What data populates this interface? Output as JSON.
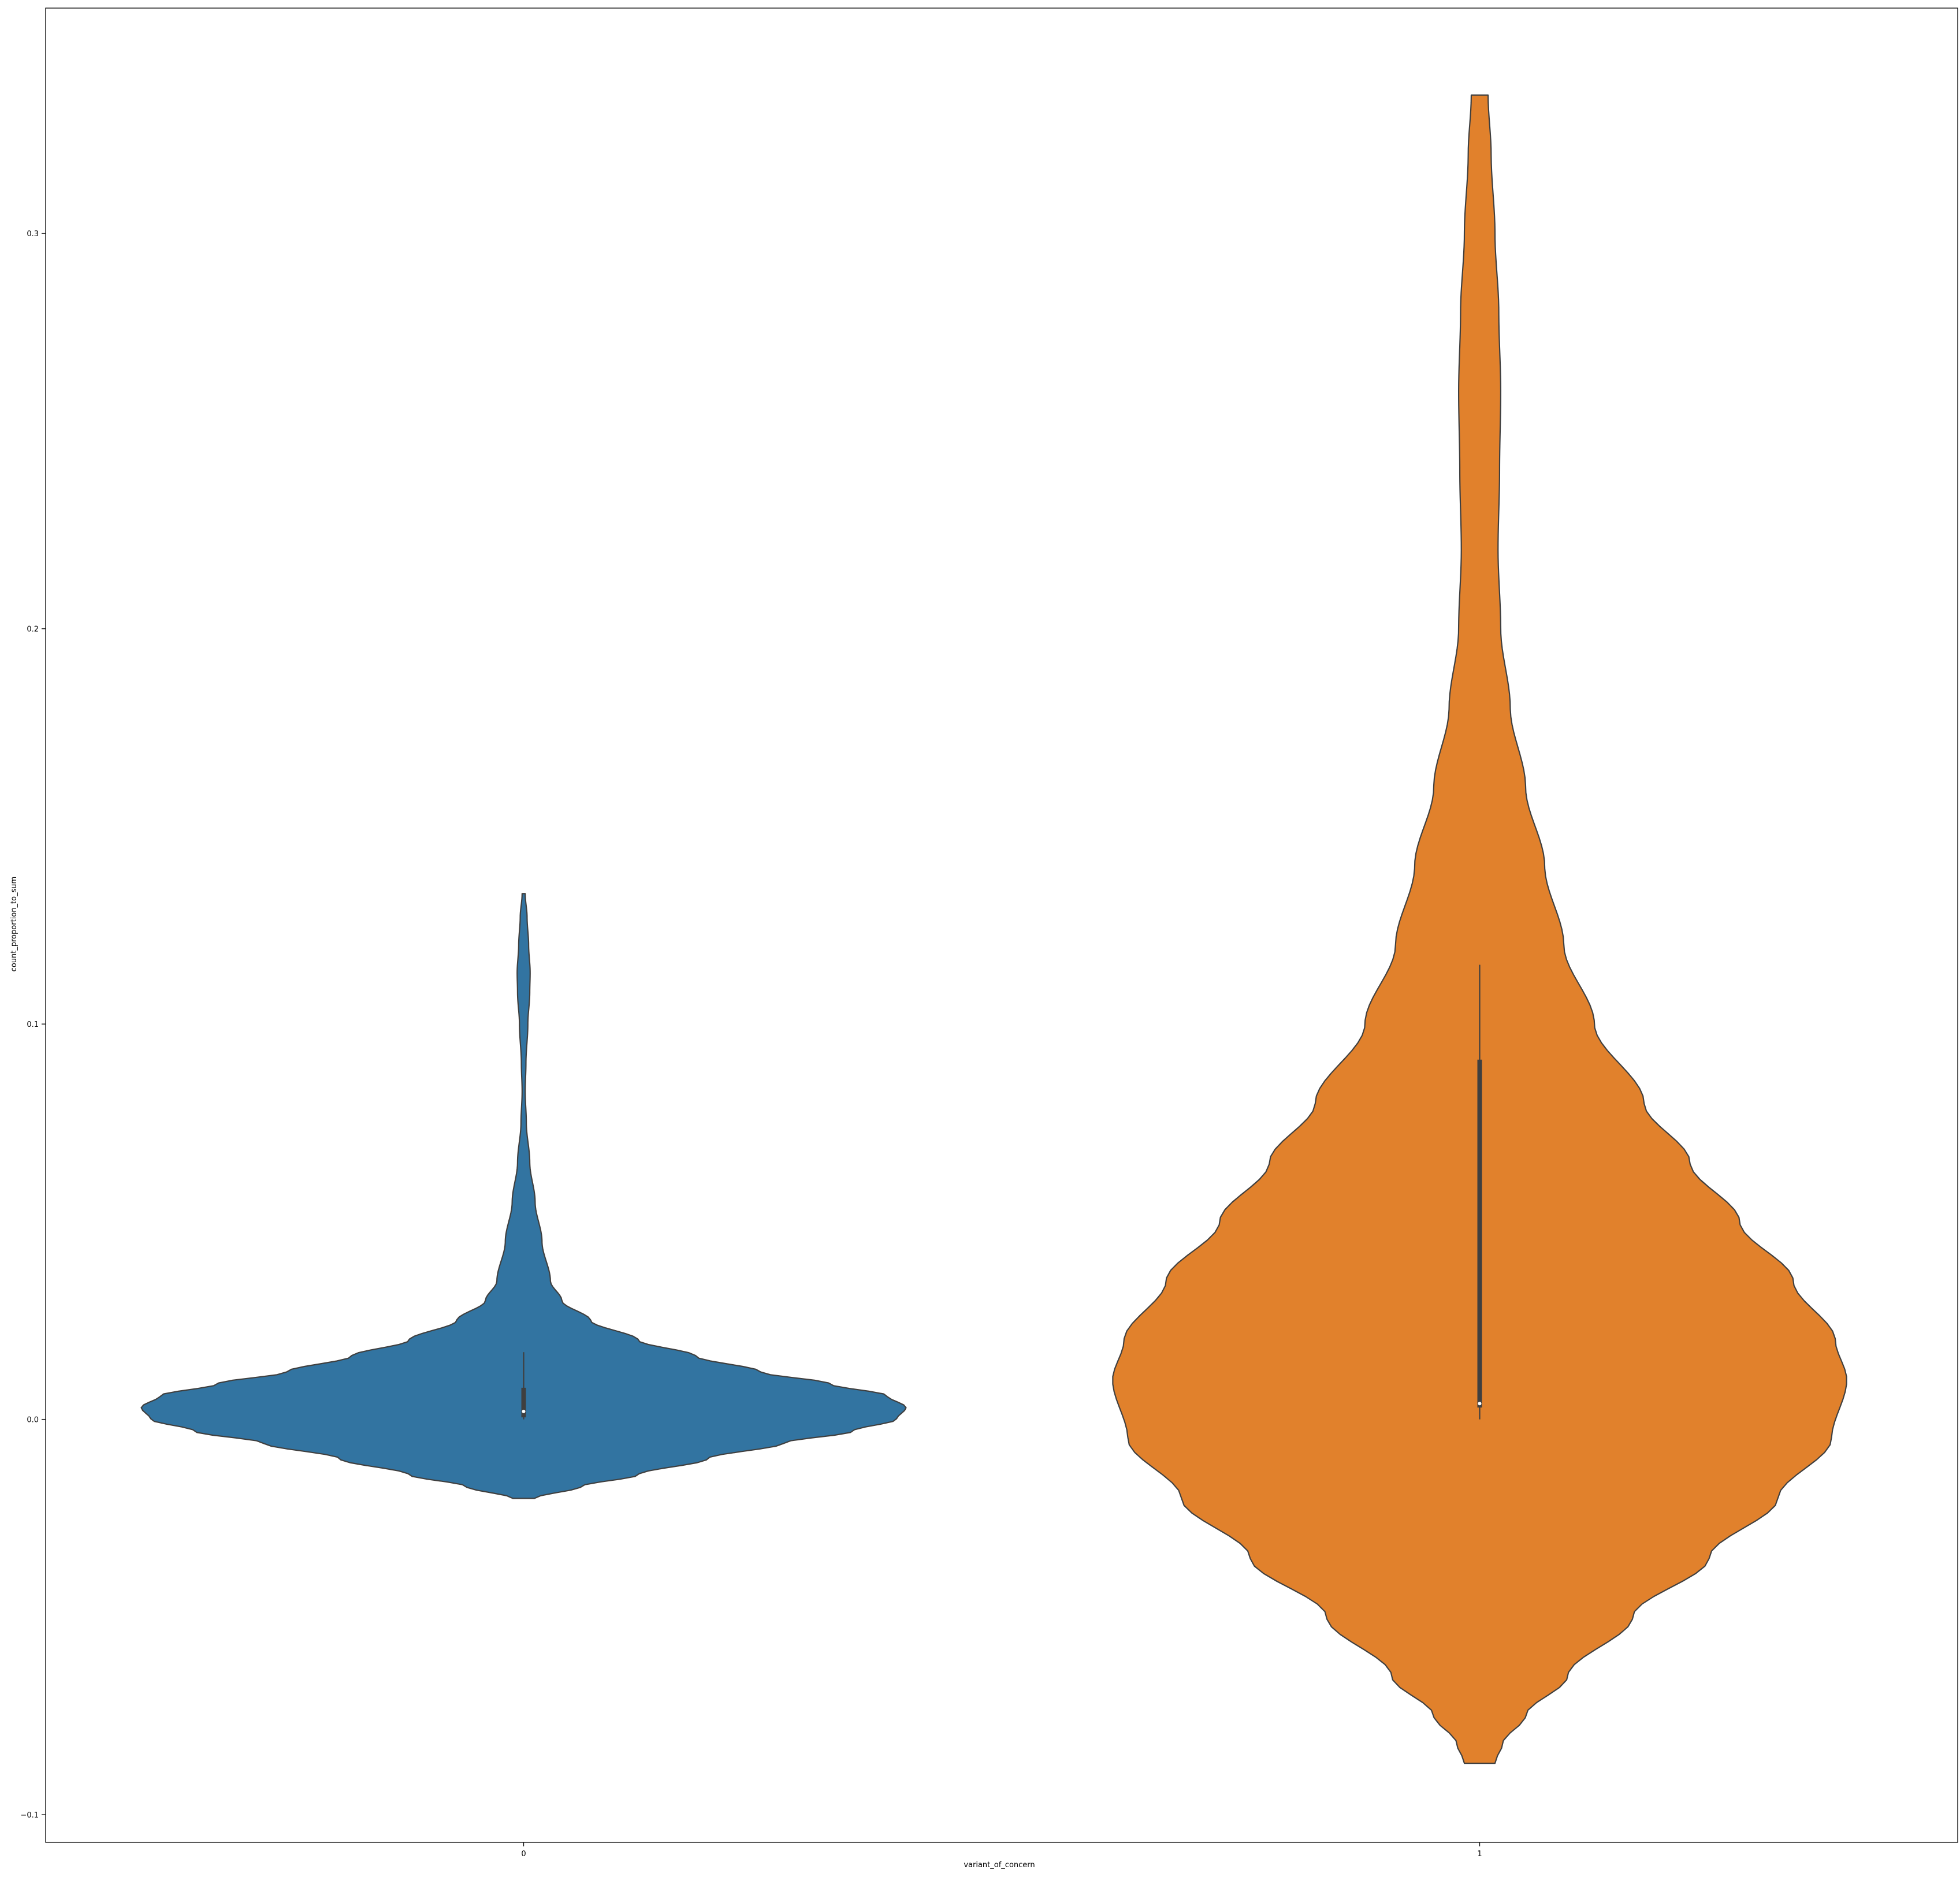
{
  "chart_data": {
    "type": "violin",
    "title": "",
    "xlabel": "variant_of_concern",
    "ylabel": "count_proportion_to_sum",
    "categories": [
      "0",
      "1"
    ],
    "ylim": [
      -0.107,
      0.357
    ],
    "yticks": [
      -0.1,
      0.0,
      0.1,
      0.2,
      0.3
    ],
    "ytick_labels": [
      "−0.1",
      "0.0",
      "0.1",
      "0.2",
      "0.3"
    ],
    "grid": false,
    "legend": "none",
    "series": [
      {
        "category": "0",
        "color": "#3274a1",
        "box": {
          "whisker_low": 0.0,
          "q1": 0.0005,
          "median": 0.002,
          "q3": 0.008,
          "whisker_high": 0.017
        },
        "density_profile": [
          [
            -0.02,
            0.028
          ],
          [
            -0.017,
            0.15
          ],
          [
            -0.014,
            0.3
          ],
          [
            -0.01,
            0.48
          ],
          [
            -0.006,
            0.68
          ],
          [
            -0.003,
            0.86
          ],
          [
            0.0,
            0.975
          ],
          [
            0.003,
            1.0
          ],
          [
            0.006,
            0.95
          ],
          [
            0.009,
            0.8
          ],
          [
            0.012,
            0.62
          ],
          [
            0.016,
            0.45
          ],
          [
            0.02,
            0.3
          ],
          [
            0.025,
            0.175
          ],
          [
            0.03,
            0.1
          ],
          [
            0.035,
            0.07
          ],
          [
            0.045,
            0.048
          ],
          [
            0.055,
            0.03
          ],
          [
            0.065,
            0.016
          ],
          [
            0.075,
            0.007
          ],
          [
            0.083,
            0.004
          ],
          [
            0.09,
            0.006
          ],
          [
            0.1,
            0.011
          ],
          [
            0.108,
            0.016
          ],
          [
            0.113,
            0.017
          ],
          [
            0.12,
            0.013
          ],
          [
            0.127,
            0.009
          ],
          [
            0.133,
            0.004
          ]
        ]
      },
      {
        "category": "1",
        "color": "#e1812c",
        "box": {
          "whisker_low": 0.0,
          "q1": 0.003,
          "median": 0.004,
          "q3": 0.091,
          "whisker_high": 0.115
        },
        "density_profile": [
          [
            -0.087,
            0.04
          ],
          [
            -0.082,
            0.06
          ],
          [
            -0.075,
            0.12
          ],
          [
            -0.065,
            0.23
          ],
          [
            -0.05,
            0.4
          ],
          [
            -0.035,
            0.6
          ],
          [
            -0.02,
            0.78
          ],
          [
            -0.005,
            0.92
          ],
          [
            0.01,
            0.96
          ],
          [
            0.02,
            0.93
          ],
          [
            0.035,
            0.82
          ],
          [
            0.05,
            0.68
          ],
          [
            0.065,
            0.55
          ],
          [
            0.08,
            0.43
          ],
          [
            0.1,
            0.3
          ],
          [
            0.12,
            0.22
          ],
          [
            0.14,
            0.17
          ],
          [
            0.16,
            0.12
          ],
          [
            0.18,
            0.08
          ],
          [
            0.2,
            0.055
          ],
          [
            0.22,
            0.048
          ],
          [
            0.24,
            0.052
          ],
          [
            0.26,
            0.055
          ],
          [
            0.28,
            0.05
          ],
          [
            0.3,
            0.04
          ],
          [
            0.32,
            0.03
          ],
          [
            0.335,
            0.022
          ]
        ]
      }
    ]
  }
}
